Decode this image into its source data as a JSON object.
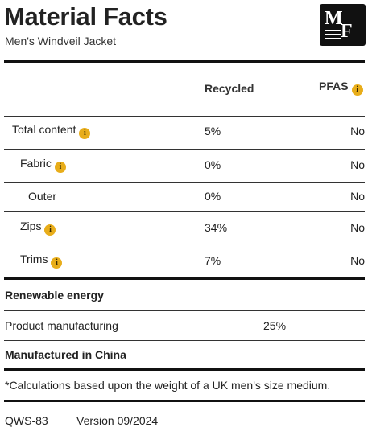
{
  "header": {
    "title": "Material Facts",
    "subtitle": "Men's Windveil Jacket",
    "logo": {
      "letters_top": "M",
      "letters_bottom": "F"
    }
  },
  "table": {
    "columns": {
      "recycled": "Recycled",
      "pfas": "PFAS"
    },
    "rows": [
      {
        "label": "Total content",
        "recycled": "5%",
        "pfas": "No",
        "info": true
      },
      {
        "label": "Fabric",
        "recycled": "0%",
        "pfas": "No",
        "info": true
      },
      {
        "label": "Outer",
        "recycled": "0%",
        "pfas": "No",
        "info": false
      },
      {
        "label": "Zips",
        "recycled": "34%",
        "pfas": "No",
        "info": true
      },
      {
        "label": "Trims",
        "recycled": "7%",
        "pfas": "No",
        "info": true
      }
    ]
  },
  "renewable": {
    "heading": "Renewable energy",
    "row_label": "Product manufacturing",
    "row_value": "25%"
  },
  "origin": "Manufactured in China",
  "note": "*Calculations based upon the weight of a UK men's size medium.",
  "footer": {
    "code": "QWS-83",
    "version": "Version 09/2024"
  },
  "colors": {
    "info_badge": "#e8ad1a",
    "rules": "#111111"
  },
  "icons": {
    "info": "info-icon",
    "logo": "mf-logo"
  }
}
